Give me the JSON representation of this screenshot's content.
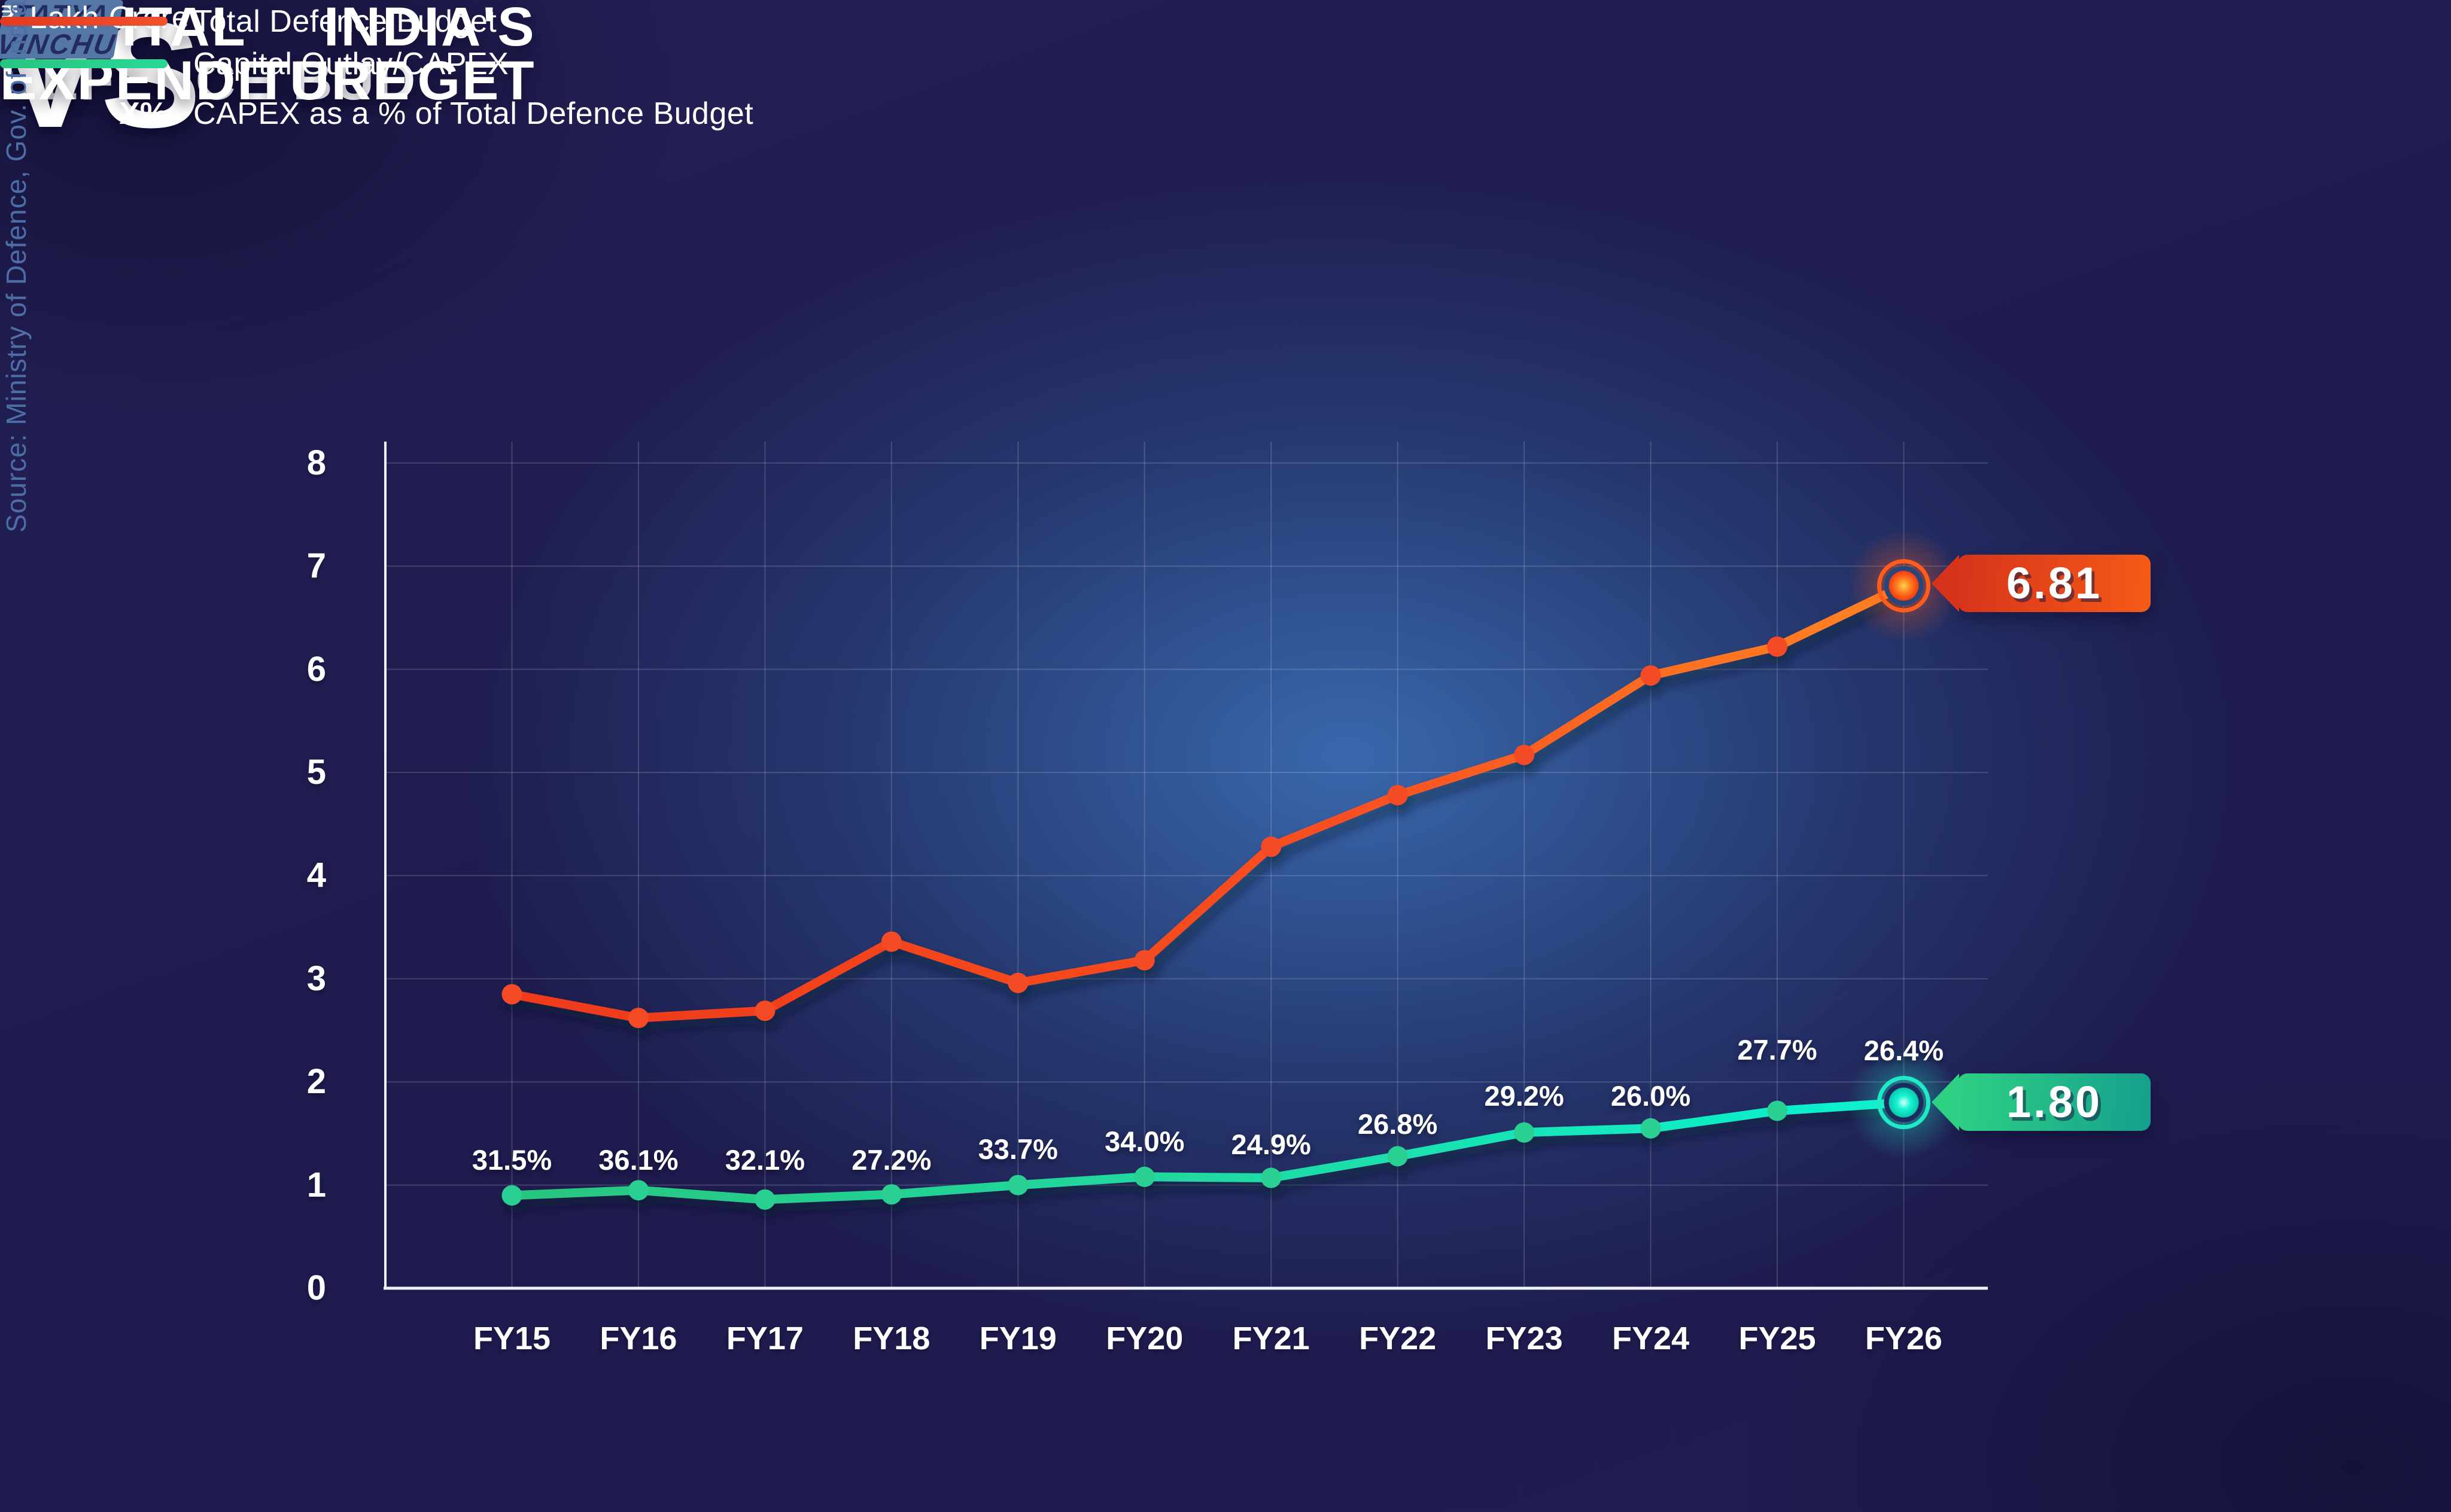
{
  "title": {
    "left_top": "INDIA'S",
    "left_bottom": "DEFENCE BUDGET",
    "vs": "VS",
    "right_top": "CAPITAL",
    "right_bottom": "EXPENDITURE"
  },
  "brand": {
    "line1": "TATYA",
    "line2": "VINCHU"
  },
  "axis_unit": "₹ Lakh Crore",
  "source": "Source: Ministry of Defence, Gov. of India",
  "legend": [
    {
      "label": "Total Defence Budget",
      "color": "#f2502e"
    },
    {
      "label": "Capital Outlay/CAPEX",
      "color": "#2bd796"
    },
    {
      "symbol": "X%",
      "label": "CAPEX as a % of Total Defence Budget"
    }
  ],
  "badges": {
    "red": {
      "value": "6.81"
    },
    "green": {
      "value": "1.80"
    }
  },
  "chart_data": {
    "type": "line",
    "title": "India's Defence Budget vs Capital Expenditure",
    "ylabel": "₹ Lakh Crore",
    "xlabel": "",
    "ylim": [
      0,
      8
    ],
    "yticks": [
      8,
      7,
      6,
      5,
      4,
      3,
      2,
      1,
      0
    ],
    "grid": true,
    "legend_position": "top-left",
    "categories": [
      "FY15",
      "FY16",
      "FY17",
      "FY18",
      "FY19",
      "FY20",
      "FY21",
      "FY22",
      "FY23",
      "FY24",
      "FY25",
      "FY26"
    ],
    "series": [
      {
        "name": "Total Defence Budget",
        "color": "#f2502e",
        "values": [
          2.85,
          2.62,
          2.69,
          3.36,
          2.96,
          3.18,
          4.28,
          4.78,
          5.17,
          5.94,
          6.22,
          6.81
        ]
      },
      {
        "name": "Capital Outlay/CAPEX",
        "color": "#2bd796",
        "values": [
          0.9,
          0.95,
          0.86,
          0.91,
          1.0,
          1.08,
          1.07,
          1.28,
          1.51,
          1.55,
          1.72,
          1.8
        ]
      }
    ],
    "capex_pct": [
      "31.5%",
      "36.1%",
      "32.1%",
      "27.2%",
      "33.7%",
      "34.0%",
      "24.9%",
      "26.8%",
      "29.2%",
      "26.0%",
      "27.7%",
      "26.4%"
    ],
    "end_annotations": {
      "Total Defence Budget": "6.81",
      "Capital Outlay/CAPEX": "1.80"
    }
  }
}
